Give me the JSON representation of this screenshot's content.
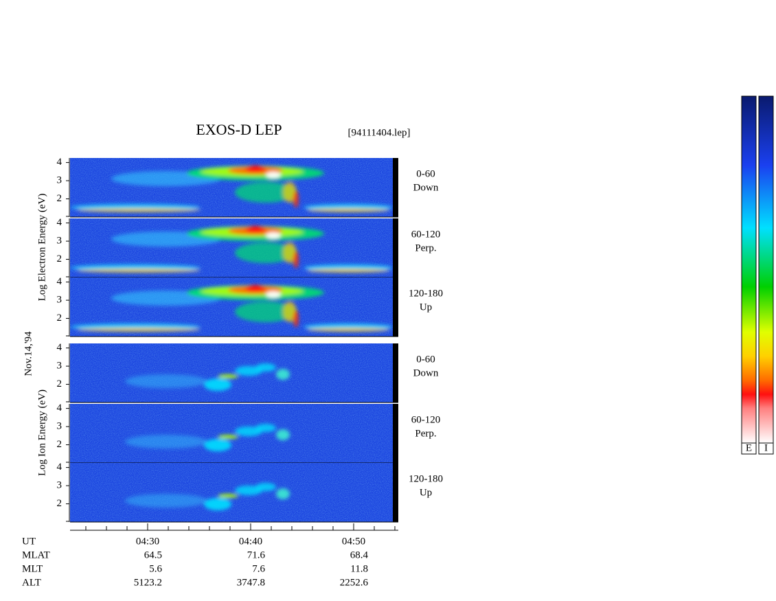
{
  "title": "EXOS-D LEP",
  "file": "[94111404.lep]",
  "date": "Nov.14,'94",
  "electron": {
    "label": "Log Electron Energy (eV)",
    "panels": [
      {
        "yticks": [
          2,
          3,
          4
        ],
        "angle": "0-60",
        "direction": "Down"
      },
      {
        "yticks": [
          2,
          3,
          4
        ],
        "angle": "60-120",
        "direction": "Perp."
      },
      {
        "yticks": [
          2,
          3,
          4
        ],
        "angle": "120-180",
        "direction": "Up"
      }
    ]
  },
  "ion": {
    "label": "Log Ion Energy (eV)",
    "panels": [
      {
        "yticks": [
          2,
          3,
          4
        ],
        "angle": "0-60",
        "direction": "Down"
      },
      {
        "yticks": [
          2,
          3,
          4
        ],
        "angle": "60-120",
        "direction": "Perp."
      },
      {
        "yticks": [
          2,
          3,
          4
        ],
        "angle": "120-180",
        "direction": "Up"
      }
    ]
  },
  "time_axis": {
    "label": "UT",
    "ticks": [
      "04:30",
      "04:40",
      "04:50"
    ]
  },
  "orbit": [
    {
      "name": "MLAT",
      "values": [
        64.5,
        71.6,
        68.4
      ]
    },
    {
      "name": "MLT",
      "values": [
        5.6,
        7.6,
        11.8
      ]
    },
    {
      "name": "ALT",
      "values": [
        5123.2,
        3747.8,
        2252.6
      ]
    }
  ],
  "colorbars": [
    "E",
    "I"
  ]
}
